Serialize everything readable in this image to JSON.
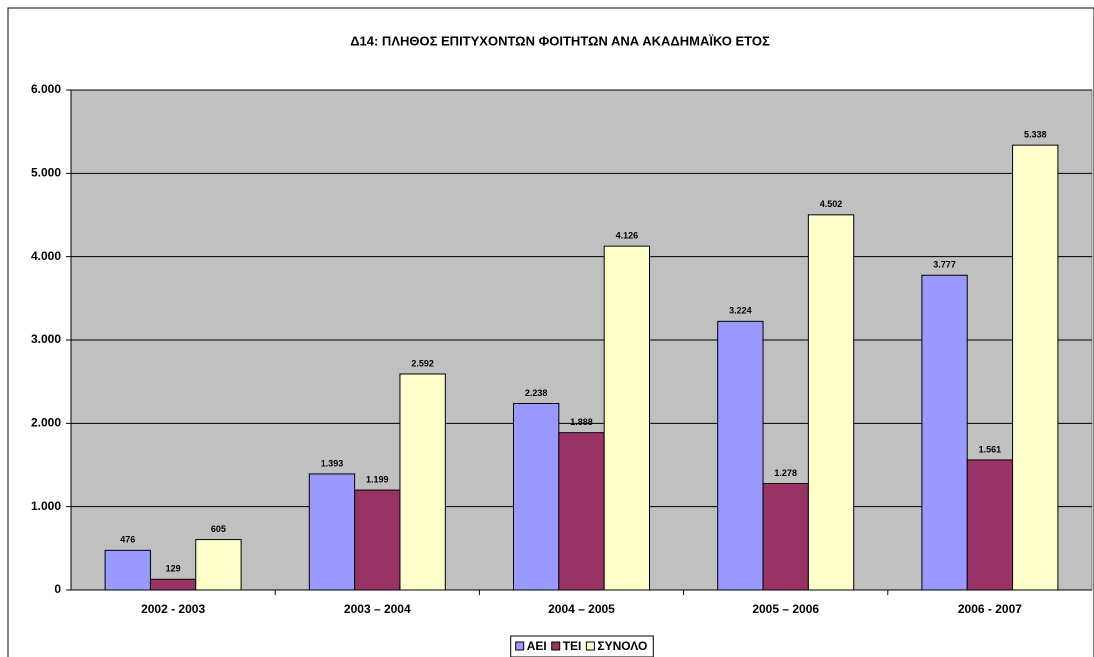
{
  "chart_data": {
    "type": "bar",
    "title": "Δ14: ΠΛΗΘΟΣ ΕΠΙΤΥΧΟΝΤΩΝ ΦΟΙΤΗΤΩΝ ΑΝΑ ΑΚΑΔΗΜΑΪΚΟ ΕΤΟΣ",
    "categories": [
      "2002 - 2003",
      "2003 – 2004",
      "2004 – 2005",
      "2005 – 2006",
      "2006 - 2007"
    ],
    "series": [
      {
        "name": "ΑΕΙ",
        "color": "#9999ff",
        "values": [
          476,
          1393,
          2238,
          3224,
          3777
        ],
        "value_labels": [
          "476",
          "1.393",
          "2.238",
          "3.224",
          "3.777"
        ]
      },
      {
        "name": "ΤΕΙ",
        "color": "#993366",
        "values": [
          129,
          1199,
          1888,
          1278,
          1561
        ],
        "value_labels": [
          "129",
          "1.199",
          "1.888",
          "1.278",
          "1.561"
        ]
      },
      {
        "name": "ΣΥΝΟΛΟ",
        "color": "#ffffcc",
        "values": [
          605,
          2592,
          4126,
          4502,
          5338
        ],
        "value_labels": [
          "605",
          "2.592",
          "4.126",
          "4.502",
          "5.338"
        ]
      }
    ],
    "ylim": [
      0,
      6000
    ],
    "yticks": [
      0,
      {
        "value": 1000,
        "label": "1.000"
      },
      {
        "value": 2000,
        "label": "2.000"
      },
      {
        "value": 3000,
        "label": "3.000"
      },
      {
        "value": 4000,
        "label": "4.000"
      },
      {
        "value": 5000,
        "label": "5.000"
      },
      {
        "value": 6000,
        "label": "6.000"
      }
    ],
    "grid": true,
    "legend": "bottom"
  }
}
